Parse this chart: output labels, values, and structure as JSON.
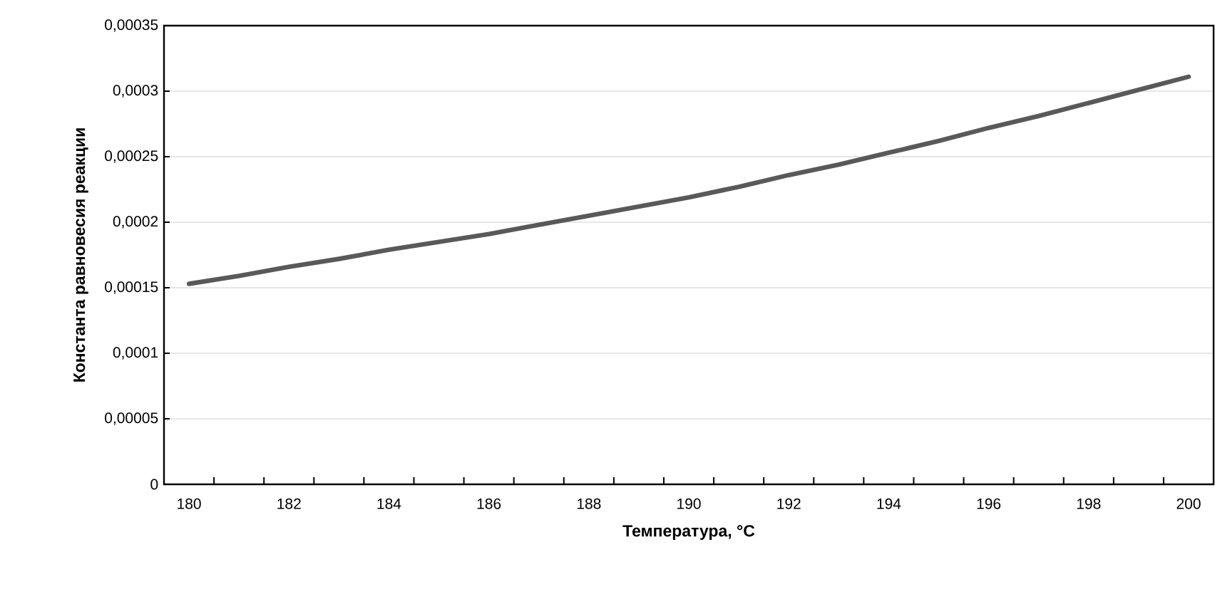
{
  "chart_data": {
    "type": "line",
    "xlabel": "Температура, °C",
    "ylabel": "Константа равновесия реакции",
    "categories": [
      "180",
      null,
      "182",
      null,
      "184",
      null,
      "186",
      null,
      "188",
      null,
      "190",
      null,
      "192",
      null,
      "194",
      null,
      "196",
      null,
      "198",
      null,
      "200"
    ],
    "series": [
      {
        "color": "#595959",
        "values": [
          0.000153,
          0.000159,
          0.000166,
          0.000172,
          0.000179,
          0.000185,
          0.000191,
          0.000198,
          0.000205,
          0.000212,
          0.000219,
          0.000227,
          0.000236,
          0.000244,
          0.000253,
          0.000262,
          0.000272,
          0.000281,
          0.000291,
          0.000301,
          0.000311
        ]
      }
    ],
    "ylim": [
      0,
      0.00035
    ],
    "yticks": [
      0,
      {
        "value": 5e-05,
        "label": "0,00005"
      },
      {
        "value": 0.0001,
        "label": "0,0001"
      },
      {
        "value": 0.00015,
        "label": "0,00015"
      },
      {
        "value": 0.0002,
        "label": "0,0002"
      },
      {
        "value": 0.00025,
        "label": "0,00025"
      },
      {
        "value": 0.0003,
        "label": "0,0003"
      },
      {
        "value": 0.00035,
        "label": "0,00035"
      }
    ],
    "grid": "y",
    "marker": "none",
    "line_style": "solid"
  }
}
